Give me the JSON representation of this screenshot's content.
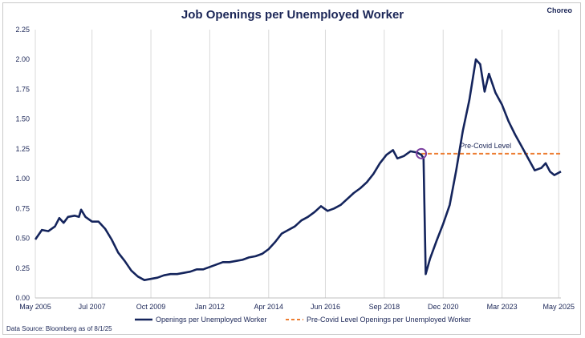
{
  "brand": "Choreo",
  "source": "Data Source: Bloomberg as of 8/1/25",
  "colors": {
    "main": "#14245c",
    "ref": "#ed7d31",
    "grid": "#d9d9d9",
    "marker": "#7b3fa0"
  },
  "chart_data": {
    "type": "line",
    "title": "Job Openings per Unemployed Worker",
    "xlabel": "",
    "ylabel": "",
    "x_range": [
      "2005-05",
      "2025-06"
    ],
    "ylim": [
      0,
      2.25
    ],
    "y_ticks": [
      "0.00",
      "0.25",
      "0.50",
      "0.75",
      "1.00",
      "1.25",
      "1.50",
      "1.75",
      "2.00",
      "2.25"
    ],
    "x_ticks": [
      {
        "label": "May 2005",
        "date": "2005-05"
      },
      {
        "label": "Jul 2007",
        "date": "2007-07"
      },
      {
        "label": "Oct 2009",
        "date": "2009-10"
      },
      {
        "label": "Jan 2012",
        "date": "2012-01"
      },
      {
        "label": "Apr 2014",
        "date": "2014-04"
      },
      {
        "label": "Jun 2016",
        "date": "2016-06"
      },
      {
        "label": "Sep 2018",
        "date": "2018-09"
      },
      {
        "label": "Dec 2020",
        "date": "2020-12"
      },
      {
        "label": "Mar 2023",
        "date": "2023-03"
      },
      {
        "label": "May 2025",
        "date": "2025-05"
      }
    ],
    "grid": "vertical",
    "legend_position": "bottom",
    "annotation": "Pre-Covid Level",
    "series": [
      {
        "name": "Openings per Unemployed Worker",
        "style": "solid",
        "points": [
          [
            "2005-05",
            0.49
          ],
          [
            "2005-08",
            0.57
          ],
          [
            "2005-11",
            0.56
          ],
          [
            "2006-02",
            0.6
          ],
          [
            "2006-04",
            0.67
          ],
          [
            "2006-06",
            0.63
          ],
          [
            "2006-08",
            0.68
          ],
          [
            "2006-11",
            0.69
          ],
          [
            "2007-01",
            0.68
          ],
          [
            "2007-02",
            0.74
          ],
          [
            "2007-04",
            0.68
          ],
          [
            "2007-07",
            0.64
          ],
          [
            "2007-10",
            0.64
          ],
          [
            "2008-01",
            0.58
          ],
          [
            "2008-04",
            0.49
          ],
          [
            "2008-07",
            0.38
          ],
          [
            "2008-10",
            0.31
          ],
          [
            "2009-01",
            0.23
          ],
          [
            "2009-04",
            0.18
          ],
          [
            "2009-07",
            0.15
          ],
          [
            "2009-10",
            0.16
          ],
          [
            "2010-01",
            0.17
          ],
          [
            "2010-04",
            0.19
          ],
          [
            "2010-07",
            0.2
          ],
          [
            "2010-10",
            0.2
          ],
          [
            "2011-01",
            0.21
          ],
          [
            "2011-04",
            0.22
          ],
          [
            "2011-07",
            0.24
          ],
          [
            "2011-10",
            0.24
          ],
          [
            "2012-01",
            0.26
          ],
          [
            "2012-04",
            0.28
          ],
          [
            "2012-07",
            0.3
          ],
          [
            "2012-10",
            0.3
          ],
          [
            "2013-01",
            0.31
          ],
          [
            "2013-04",
            0.32
          ],
          [
            "2013-07",
            0.34
          ],
          [
            "2013-10",
            0.35
          ],
          [
            "2014-01",
            0.37
          ],
          [
            "2014-04",
            0.41
          ],
          [
            "2014-07",
            0.47
          ],
          [
            "2014-10",
            0.54
          ],
          [
            "2015-01",
            0.57
          ],
          [
            "2015-04",
            0.6
          ],
          [
            "2015-07",
            0.65
          ],
          [
            "2015-10",
            0.68
          ],
          [
            "2016-01",
            0.72
          ],
          [
            "2016-04",
            0.77
          ],
          [
            "2016-07",
            0.73
          ],
          [
            "2016-10",
            0.75
          ],
          [
            "2017-01",
            0.78
          ],
          [
            "2017-04",
            0.83
          ],
          [
            "2017-07",
            0.88
          ],
          [
            "2017-10",
            0.92
          ],
          [
            "2018-01",
            0.97
          ],
          [
            "2018-04",
            1.04
          ],
          [
            "2018-07",
            1.13
          ],
          [
            "2018-10",
            1.2
          ],
          [
            "2019-01",
            1.24
          ],
          [
            "2019-03",
            1.17
          ],
          [
            "2019-06",
            1.19
          ],
          [
            "2019-09",
            1.23
          ],
          [
            "2019-12",
            1.22
          ],
          [
            "2020-02",
            1.2
          ],
          [
            "2020-03",
            1.17
          ],
          [
            "2020-04",
            0.2
          ],
          [
            "2020-06",
            0.33
          ],
          [
            "2020-09",
            0.48
          ],
          [
            "2020-12",
            0.62
          ],
          [
            "2021-03",
            0.78
          ],
          [
            "2021-06",
            1.07
          ],
          [
            "2021-09",
            1.4
          ],
          [
            "2021-12",
            1.66
          ],
          [
            "2022-03",
            2.0
          ],
          [
            "2022-05",
            1.96
          ],
          [
            "2022-07",
            1.73
          ],
          [
            "2022-09",
            1.88
          ],
          [
            "2022-12",
            1.72
          ],
          [
            "2023-03",
            1.62
          ],
          [
            "2023-06",
            1.48
          ],
          [
            "2023-09",
            1.37
          ],
          [
            "2023-12",
            1.27
          ],
          [
            "2024-03",
            1.17
          ],
          [
            "2024-06",
            1.07
          ],
          [
            "2024-09",
            1.09
          ],
          [
            "2024-11",
            1.13
          ],
          [
            "2025-01",
            1.06
          ],
          [
            "2025-03",
            1.03
          ],
          [
            "2025-06",
            1.06
          ]
        ]
      },
      {
        "name": "Pre-Covid Level Openings per Unemployed Worker",
        "style": "dashed",
        "from": "2020-02",
        "to": "2025-06",
        "value": 1.21
      }
    ]
  }
}
